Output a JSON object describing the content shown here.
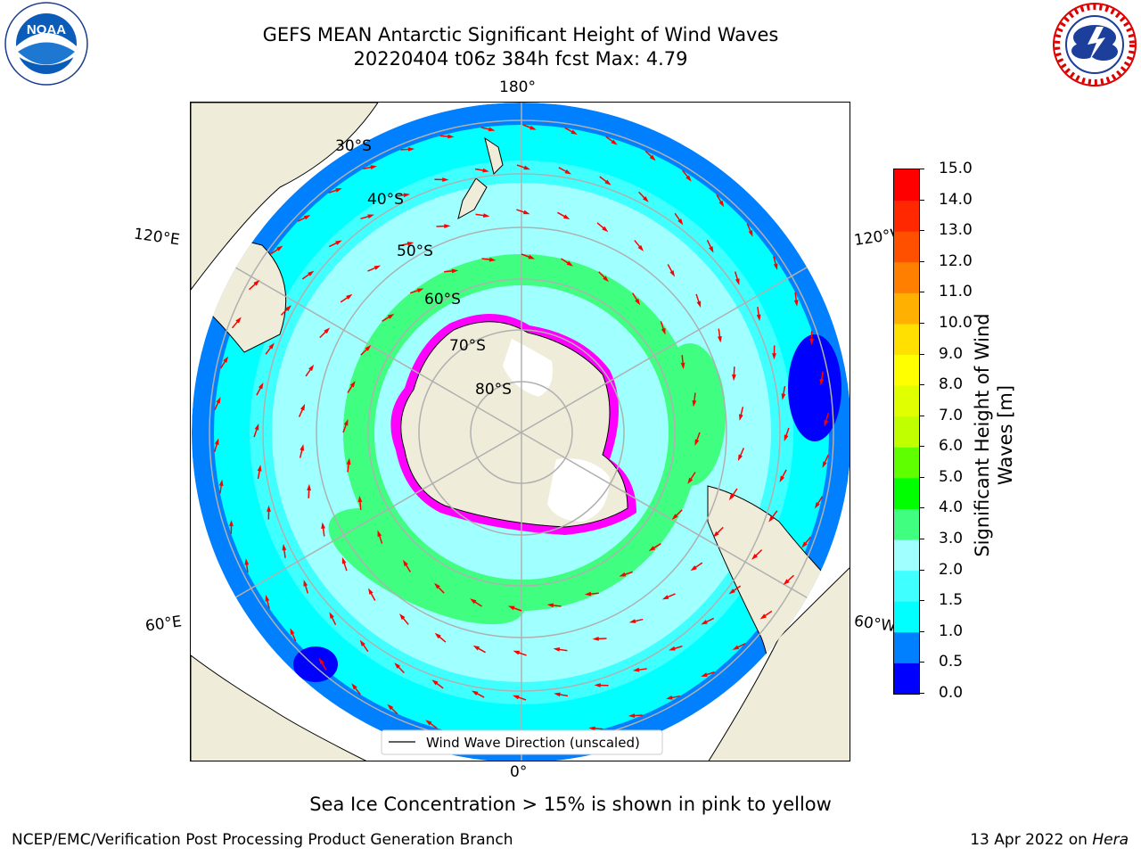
{
  "header": {
    "title_line1": "GEFS MEAN Antarctic Significant Height of Wind Waves",
    "title_line2": "20220404 t06z 384h fcst   Max: 4.79"
  },
  "logos": {
    "noaa": {
      "text": "NOAA",
      "ring_text": "NATIONAL OCEANIC AND ATMOSPHERIC ADMINISTRATION · U.S. DEPARTMENT OF COMMERCE"
    },
    "nws": {
      "ring_text": "NATIONAL WEATHER SERVICE"
    }
  },
  "map": {
    "longitude_labels": {
      "top": "180°",
      "bottom": "0°",
      "upper_left": "120°E",
      "upper_right": "120°W",
      "lower_left": "60°E",
      "lower_right": "60°W"
    },
    "latitude_labels": [
      "30°S",
      "40°S",
      "50°S",
      "60°S",
      "70°S",
      "80°S"
    ],
    "legend_label": "Wind Wave Direction (unscaled)",
    "arrow_color": "#ff0000"
  },
  "colorbar": {
    "label": "Significant Height of Wind Waves [m]",
    "ticks": [
      "0.0",
      "0.5",
      "1.0",
      "1.5",
      "2.0",
      "3.0",
      "4.0",
      "5.0",
      "6.0",
      "7.0",
      "8.0",
      "9.0",
      "10.0",
      "11.0",
      "12.0",
      "13.0",
      "14.0",
      "15.0"
    ],
    "colors": [
      "#0000ff",
      "#0080ff",
      "#00ffff",
      "#40ffff",
      "#a0ffff",
      "#40ff80",
      "#00ff00",
      "#60ff00",
      "#c0ff00",
      "#e0ff00",
      "#ffff00",
      "#ffe000",
      "#ffb000",
      "#ff8000",
      "#ff5000",
      "#ff2800",
      "#ff0000"
    ]
  },
  "note": "Sea Ice Concentration > 15% is shown in pink to yellow",
  "footer": {
    "left": "NCEP/EMC/Verification Post Processing Product Generation Branch",
    "right_date": "13 Apr 2022 on ",
    "right_host": "Hera"
  }
}
